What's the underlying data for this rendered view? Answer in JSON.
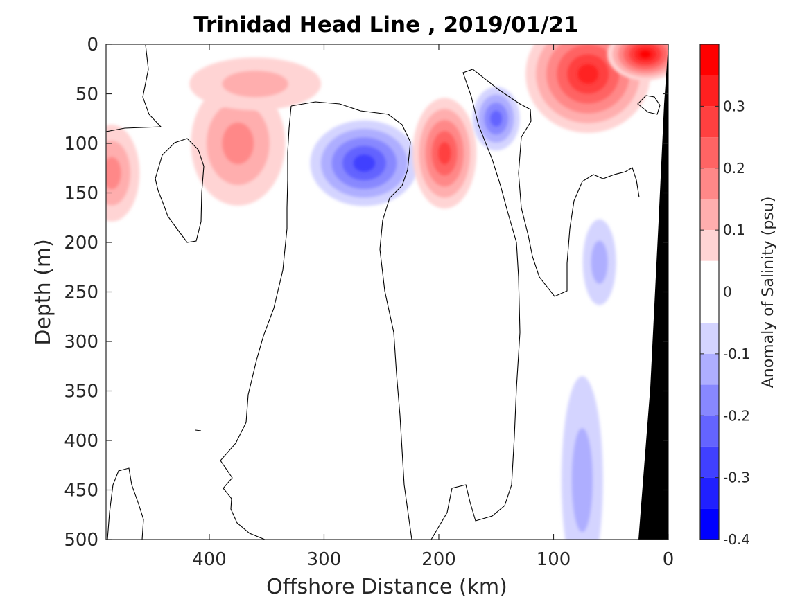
{
  "chart_data": {
    "type": "heatmap",
    "title": "Trinidad Head Line , 2019/01/21",
    "xlabel": "Offshore Distance (km)",
    "ylabel": "Depth (m)",
    "colorbar_label": "Anomaly of Salinity (psu)",
    "x_axis": {
      "range": [
        490,
        0
      ],
      "ticks": [
        400,
        300,
        200,
        100,
        0
      ],
      "tick_labels": [
        "400",
        "300",
        "200",
        "100",
        "0"
      ]
    },
    "y_axis": {
      "range": [
        0,
        500
      ],
      "reversed": true,
      "ticks": [
        0,
        50,
        100,
        150,
        200,
        250,
        300,
        350,
        400,
        450,
        500
      ],
      "tick_labels": [
        "0",
        "50",
        "100",
        "150",
        "200",
        "250",
        "300",
        "350",
        "400",
        "450",
        "500"
      ]
    },
    "colorbar": {
      "range": [
        -0.4,
        0.4
      ],
      "ticks": [
        0.3,
        0.2,
        0.1,
        0,
        -0.1,
        -0.2,
        -0.3,
        -0.4
      ],
      "tick_labels": [
        "0.3",
        "0.2",
        "0.1",
        "0",
        "-0.1",
        "-0.2",
        "-0.3",
        "-0.4"
      ],
      "levels": [
        {
          "min": 0.35,
          "max": 0.4,
          "color": "#ff0000"
        },
        {
          "min": 0.3,
          "max": 0.35,
          "color": "#ff2020"
        },
        {
          "min": 0.25,
          "max": 0.3,
          "color": "#ff4040"
        },
        {
          "min": 0.2,
          "max": 0.25,
          "color": "#ff6464"
        },
        {
          "min": 0.15,
          "max": 0.2,
          "color": "#ff8888"
        },
        {
          "min": 0.1,
          "max": 0.15,
          "color": "#ffaeae"
        },
        {
          "min": 0.05,
          "max": 0.1,
          "color": "#ffd4d4"
        },
        {
          "min": -0.05,
          "max": 0.05,
          "color": "#ffffff"
        },
        {
          "min": -0.1,
          "max": -0.05,
          "color": "#d4d4ff"
        },
        {
          "min": -0.15,
          "max": -0.1,
          "color": "#aeaeff"
        },
        {
          "min": -0.2,
          "max": -0.15,
          "color": "#8888ff"
        },
        {
          "min": -0.25,
          "max": -0.2,
          "color": "#6464ff"
        },
        {
          "min": -0.3,
          "max": -0.25,
          "color": "#4040ff"
        },
        {
          "min": -0.35,
          "max": -0.3,
          "color": "#2020ff"
        },
        {
          "min": -0.4,
          "max": -0.35,
          "color": "#0000ff"
        }
      ]
    },
    "features": [
      {
        "type": "high_salinity",
        "x": 375,
        "depth": 100,
        "peak": 0.15
      },
      {
        "type": "high_salinity",
        "x": 360,
        "depth": 40,
        "peak": 0.1
      },
      {
        "type": "high_salinity",
        "x": 485,
        "depth": 130,
        "peak": 0.15
      },
      {
        "type": "low_salinity",
        "x": 265,
        "depth": 120,
        "peak": -0.25
      },
      {
        "type": "high_salinity",
        "x": 195,
        "depth": 110,
        "peak": 0.25
      },
      {
        "type": "low_salinity",
        "x": 150,
        "depth": 75,
        "peak": -0.2
      },
      {
        "type": "high_salinity",
        "x": 70,
        "depth": 30,
        "peak": 0.3
      },
      {
        "type": "high_salinity",
        "x": 20,
        "depth": 10,
        "peak": 0.35
      },
      {
        "type": "low_salinity",
        "x": 60,
        "depth": 220,
        "peak": -0.1
      },
      {
        "type": "low_salinity",
        "x": 75,
        "depth": 440,
        "peak": -0.1
      }
    ],
    "grid": false,
    "legend": "colorbar right"
  }
}
